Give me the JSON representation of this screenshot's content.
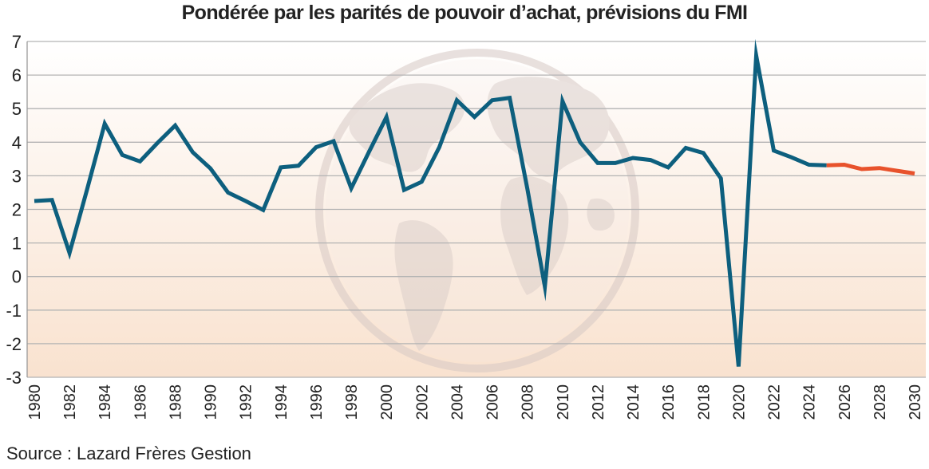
{
  "chart_data": {
    "type": "line",
    "title": "Pondérée par les parités de pouvoir d’achat, prévisions du FMI",
    "xlabel": "",
    "ylabel": "",
    "xlim": [
      1980,
      2030
    ],
    "ylim": [
      -3,
      7
    ],
    "yticks": [
      7,
      6,
      5,
      4,
      3,
      2,
      1,
      0,
      -1,
      -2,
      -3
    ],
    "xticks": [
      1980,
      1982,
      1984,
      1986,
      1988,
      1990,
      1992,
      1994,
      1996,
      1998,
      2000,
      2002,
      2004,
      2006,
      2008,
      2010,
      2012,
      2014,
      2016,
      2018,
      2020,
      2022,
      2024,
      2026,
      2028,
      2030
    ],
    "grid": true,
    "legend": "none",
    "series": [
      {
        "color": "#0d5f7e",
        "x": [
          1980,
          1981,
          1982,
          1983,
          1984,
          1985,
          1986,
          1987,
          1988,
          1989,
          1990,
          1991,
          1992,
          1993,
          1994,
          1995,
          1996,
          1997,
          1998,
          1999,
          2000,
          2001,
          2002,
          2003,
          2004,
          2005,
          2006,
          2007,
          2008,
          2009,
          2010,
          2011,
          2012,
          2013,
          2014,
          2015,
          2016,
          2017,
          2018,
          2019,
          2020,
          2021,
          2022,
          2023,
          2024,
          2025
        ],
        "y": [
          2.25,
          2.28,
          0.7,
          2.6,
          4.55,
          3.62,
          3.43,
          3.98,
          4.5,
          3.7,
          3.22,
          2.5,
          2.25,
          1.98,
          3.25,
          3.3,
          3.85,
          4.03,
          2.63,
          3.7,
          4.75,
          2.58,
          2.82,
          3.85,
          5.25,
          4.75,
          5.25,
          5.32,
          2.62,
          -0.3,
          5.22,
          4.0,
          3.38,
          3.38,
          3.53,
          3.47,
          3.25,
          3.83,
          3.68,
          2.92,
          -2.68,
          6.58,
          3.75,
          3.55,
          3.33,
          3.31
        ]
      },
      {
        "color": "#e8522c",
        "x": [
          2025,
          2026,
          2027,
          2028,
          2029,
          2030
        ],
        "y": [
          3.31,
          3.33,
          3.2,
          3.23,
          3.15,
          3.07
        ]
      }
    ]
  },
  "source": "Source : Lazard Frères Gestion"
}
